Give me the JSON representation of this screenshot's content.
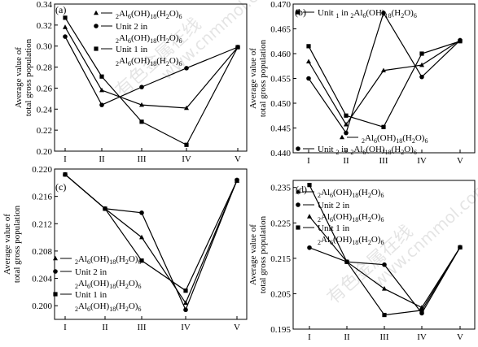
{
  "figure": {
    "watermark": {
      "cjk": "有色金属在线",
      "latin": "www.cnmmol.com"
    }
  },
  "chart_data": [
    {
      "type": "line",
      "panel": "(a)",
      "categories": [
        "I",
        "II",
        "III",
        "IV",
        "V"
      ],
      "ylabel": [
        "Average value of",
        "total gross population"
      ],
      "ylim": [
        0.2,
        0.34
      ],
      "yticks": [
        "0.20",
        "0.22",
        "0.24",
        "0.26",
        "0.28",
        "0.30",
        "0.32",
        "0.34"
      ],
      "legend_position": "top-center",
      "series": [
        {
          "name": "2Al6(OH)18(H2O)6",
          "marker": "triangle",
          "values": [
            0.318,
            0.258,
            0.244,
            0.241,
            0.299
          ]
        },
        {
          "name": "Unit 2 in 2Al6(OH)18(H2O)6",
          "marker": "circle",
          "values": [
            0.309,
            0.244,
            0.261,
            0.279,
            0.299
          ]
        },
        {
          "name": "Unit 1 in 2Al6(OH)18(H2O)6",
          "marker": "square",
          "values": [
            0.327,
            0.271,
            0.228,
            0.206,
            0.299
          ]
        }
      ]
    },
    {
      "type": "line",
      "panel": "(b)",
      "categories": [
        "I",
        "II",
        "III",
        "IV",
        "V"
      ],
      "ylabel": [
        "Average value of",
        "total gross population"
      ],
      "ylim": [
        0.44,
        0.47
      ],
      "yticks": [
        "0.440",
        "0.445",
        "0.450",
        "0.455",
        "0.460",
        "0.465",
        "0.470"
      ],
      "legend_position": "top and bottom",
      "series": [
        {
          "name": "Unit 1 in 2Al6(OH)18(H2O)6",
          "marker": "square",
          "values": [
            0.4615,
            0.4475,
            0.4452,
            0.46,
            0.4625
          ]
        },
        {
          "name": "2Al6(OH)18(H2O)6",
          "marker": "triangle",
          "values": [
            0.4584,
            0.4457,
            0.4566,
            0.4577,
            0.4627
          ]
        },
        {
          "name": "Unit 2 in 2Al6(OH)18(H2O)6",
          "marker": "circle",
          "values": [
            0.455,
            0.444,
            0.4682,
            0.4553,
            0.4627
          ]
        }
      ]
    },
    {
      "type": "line",
      "panel": "(c)",
      "categories": [
        "I",
        "II",
        "III",
        "IV",
        "V"
      ],
      "ylabel": [
        "Average value of",
        "total gross population"
      ],
      "ylim": [
        0.198,
        0.22
      ],
      "yticks": [
        "0.200",
        "0.204",
        "0.208",
        "0.212",
        "0.216",
        "0.220"
      ],
      "legend_position": "bottom-left",
      "series": [
        {
          "name": "2Al6(OH)18(H2O)6",
          "marker": "triangle",
          "values": [
            0.2192,
            0.2142,
            0.21,
            0.2004,
            0.2183
          ]
        },
        {
          "name": "Unit 2 in 2Al6(OH)18(H2O)6",
          "marker": "circle",
          "values": [
            0.2192,
            0.2142,
            0.2136,
            0.1994,
            0.2184
          ]
        },
        {
          "name": "Unit 1 in 2Al6(OH)18(H2O)6",
          "marker": "square",
          "values": [
            0.2192,
            0.2142,
            0.2066,
            0.2022,
            0.2183
          ]
        }
      ]
    },
    {
      "type": "line",
      "panel": "(d)",
      "categories": [
        "I",
        "II",
        "III",
        "IV",
        "V"
      ],
      "ylabel": [
        "Average value of",
        "total gross population"
      ],
      "ylim": [
        0.195,
        0.237
      ],
      "yticks": [
        "0.195",
        "0.205",
        "0.215",
        "0.225",
        "0.235"
      ],
      "legend_position": "top-left",
      "series": [
        {
          "name": "2Al6(OH)18(H2O)6",
          "marker": "triangle",
          "values": [
            0.2268,
            0.214,
            0.2064,
            0.2011,
            0.2181
          ]
        },
        {
          "name": "Unit 2 in 2Al6(OH)18(H2O)6",
          "marker": "circle",
          "values": [
            0.218,
            0.214,
            0.2132,
            0.1995,
            0.2181
          ]
        },
        {
          "name": "Unit 1 in 2Al6(OH)18(H2O)6",
          "marker": "square",
          "values": [
            0.2357,
            0.214,
            0.199,
            0.2003,
            0.2181
          ]
        }
      ]
    }
  ]
}
